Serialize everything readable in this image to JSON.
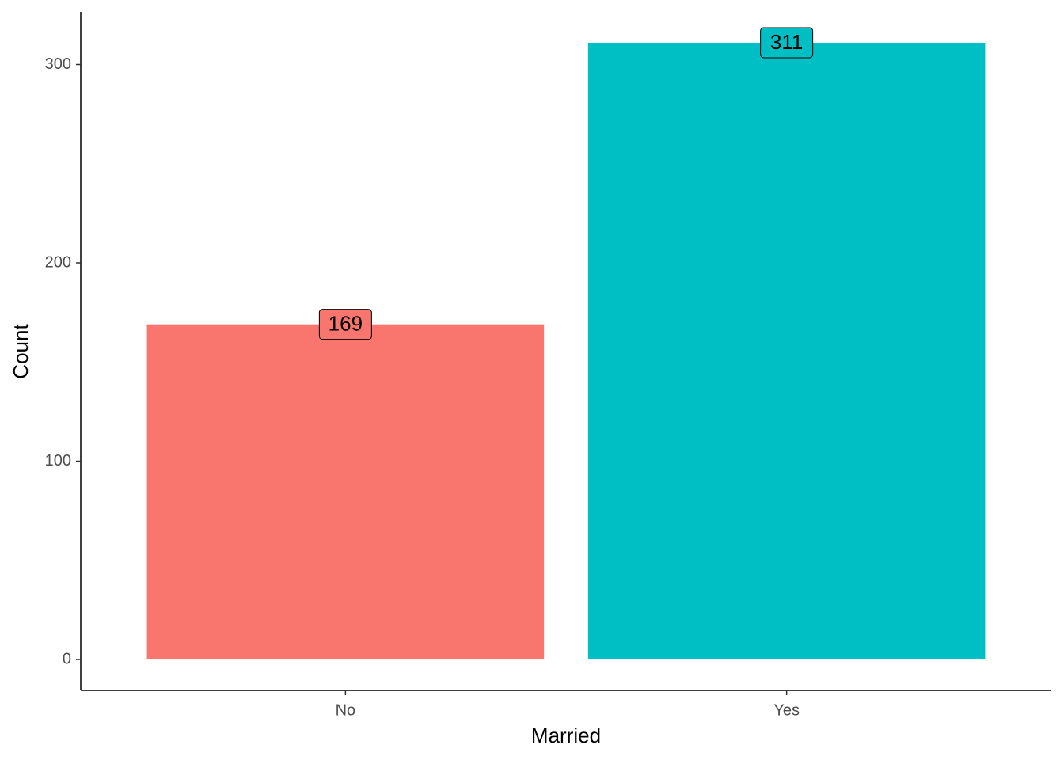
{
  "chart_data": {
    "type": "bar",
    "categories": [
      "No",
      "Yes"
    ],
    "values": [
      169,
      311
    ],
    "colors": [
      "#F8766D",
      "#00BFC4"
    ],
    "xlabel": "Married",
    "ylabel": "Count",
    "ylim": [
      -15.55,
      326.55
    ],
    "yticks": [
      0,
      100,
      200,
      300
    ],
    "grid": false,
    "data_labels": true
  }
}
